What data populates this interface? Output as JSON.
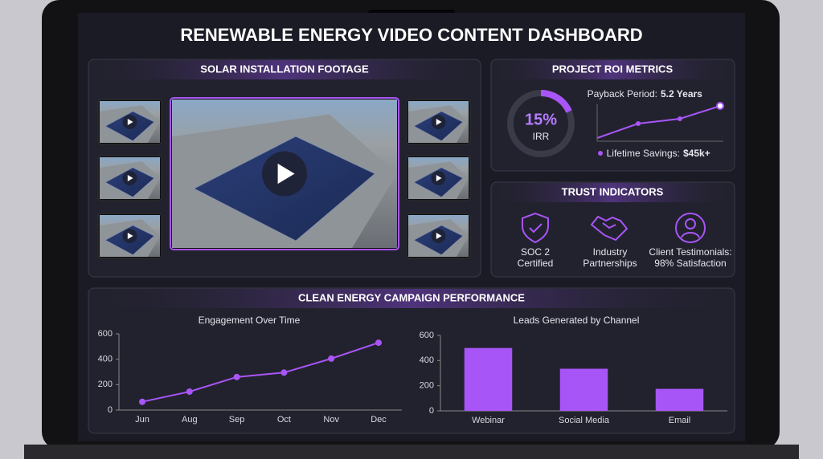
{
  "title": "RENEWABLE ENERGY VIDEO CONTENT DASHBOARD",
  "video_panel": {
    "title": "SOLAR INSTALLATION FOOTAGE"
  },
  "roi_panel": {
    "title": "PROJECT ROI METRICS",
    "irr_value": "15%",
    "irr_label": "IRR",
    "payback_label": "Payback Period:",
    "payback_value": "5.2 Years",
    "savings_label": "Lifetime Savings:",
    "savings_value": "$45k+"
  },
  "trust_panel": {
    "title": "TRUST INDICATORS",
    "items": [
      {
        "lines": [
          "SOC 2",
          "Certified"
        ]
      },
      {
        "lines": [
          "Industry",
          "Partnerships"
        ]
      },
      {
        "lines": [
          "Client Testimonials:",
          "98% Satisfaction"
        ]
      }
    ]
  },
  "campaign_panel": {
    "title": "CLEAN ENERGY CAMPAIGN PERFORMANCE"
  },
  "chart_data": [
    {
      "type": "line",
      "title": "Engagement Over Time",
      "categories": [
        "Jun",
        "Aug",
        "Sep",
        "Oct",
        "Nov",
        "Dec"
      ],
      "values": [
        65,
        145,
        260,
        295,
        405,
        530
      ],
      "color": "#a855f7",
      "ylim": [
        0,
        600
      ],
      "yticks": [
        0,
        200,
        400,
        600
      ]
    },
    {
      "type": "bar",
      "title": "Leads Generated by Channel",
      "categories": [
        "Webinar",
        "Social Media",
        "Email"
      ],
      "values": [
        500,
        335,
        175
      ],
      "color": "#a855f7",
      "ylim": [
        0,
        600
      ],
      "yticks": [
        0,
        200,
        400,
        600
      ]
    }
  ]
}
